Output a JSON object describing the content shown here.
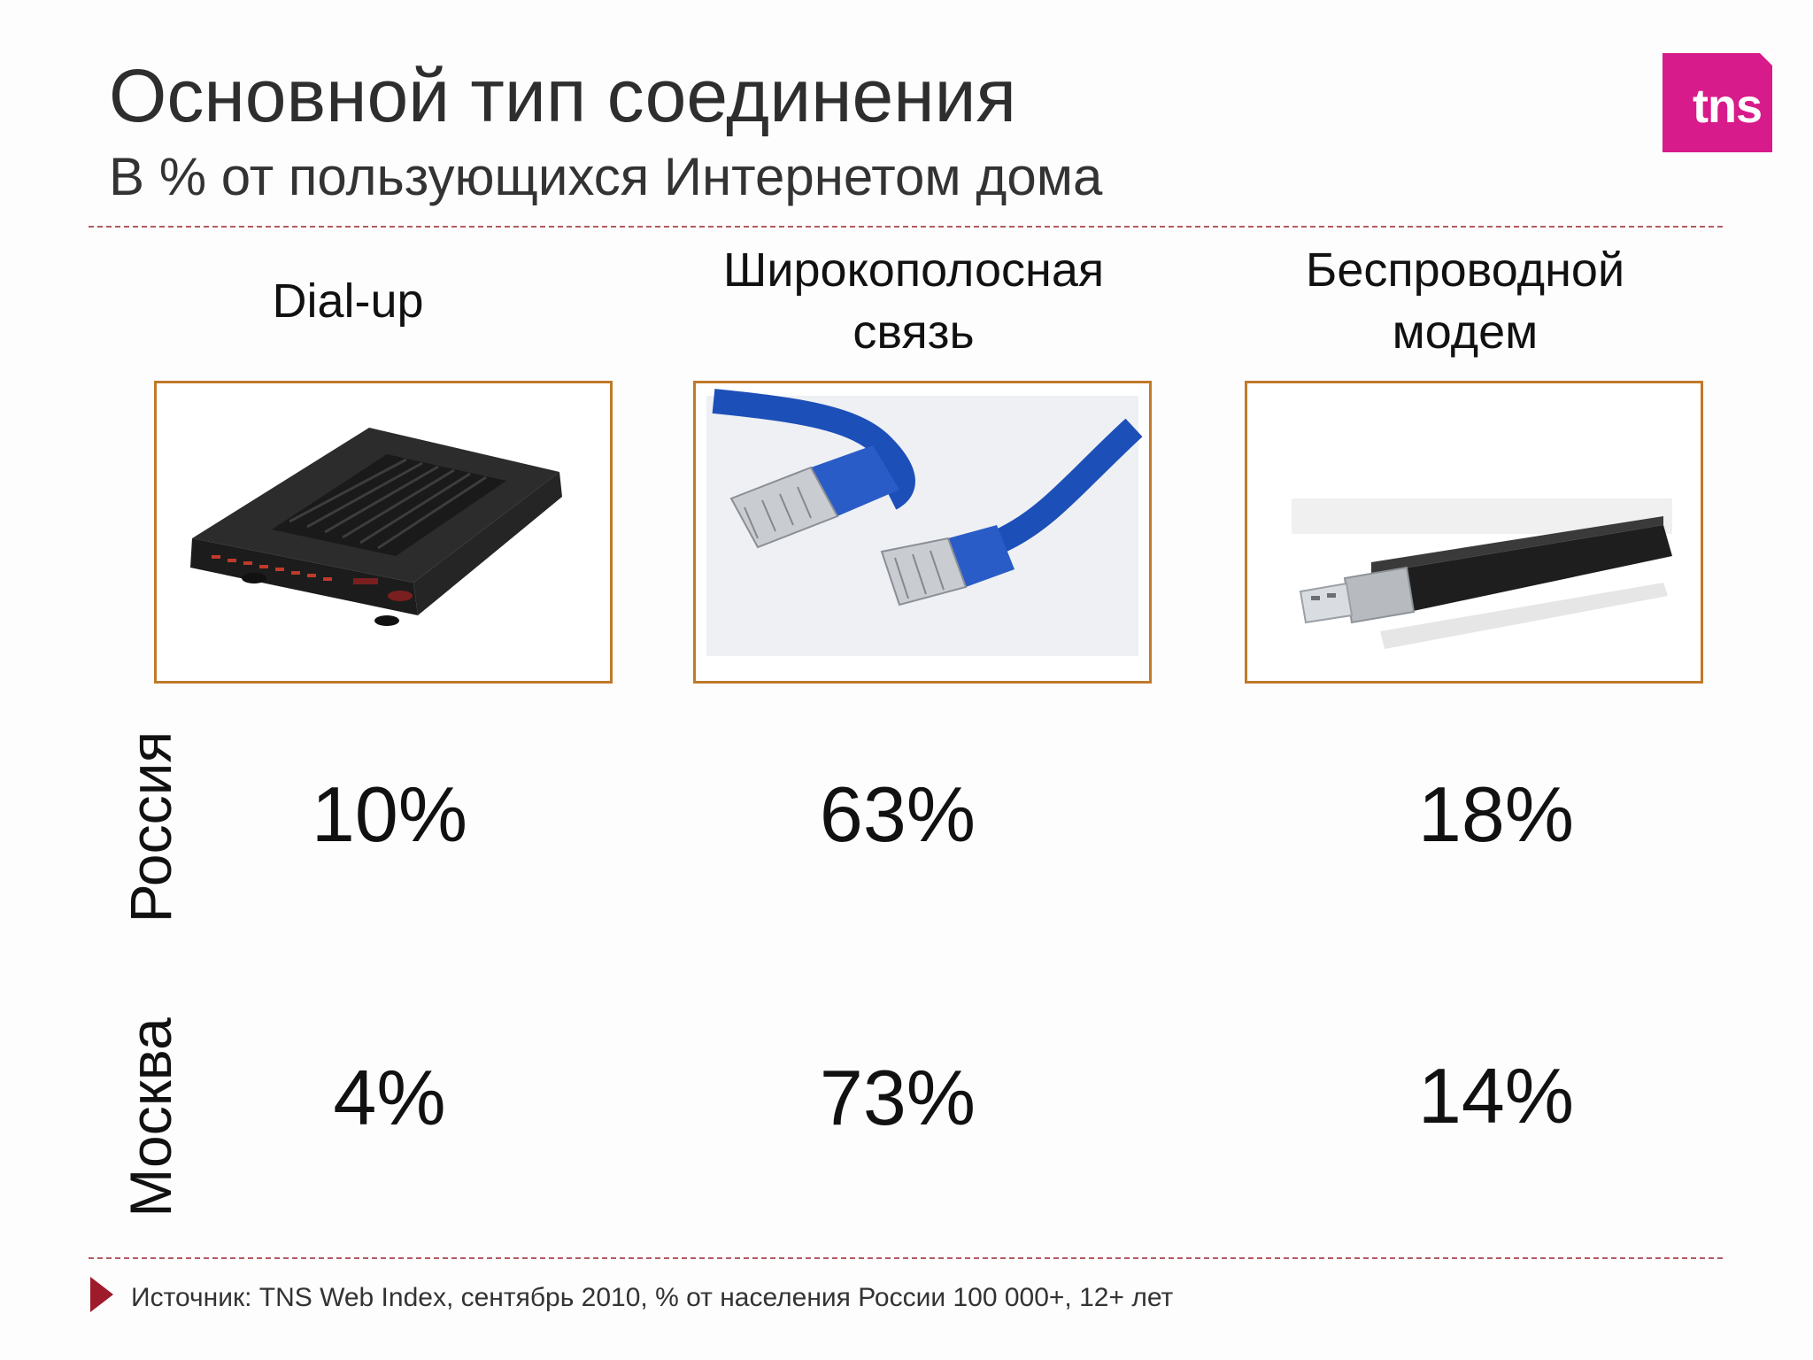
{
  "slide": {
    "title": "Основной тип соединения",
    "subtitle": "В % от пользующихся Интернетом дома",
    "logo_text": "tns",
    "accent_color": "#d81b8a",
    "frame_color": "#c07a2a",
    "divider_color": "#b35a63"
  },
  "columns": [
    {
      "line1": "Dial-up",
      "line2": "",
      "image": "dial-up-modem"
    },
    {
      "line1": "Широкополосная",
      "line2": "связь",
      "image": "ethernet-cables"
    },
    {
      "line1": "Беспроводной",
      "line2": "модем",
      "image": "usb-modem"
    }
  ],
  "rows": [
    {
      "label": "Россия",
      "values": [
        "10%",
        "63%",
        "18%"
      ]
    },
    {
      "label": "Москва",
      "values": [
        "4%",
        "73%",
        "14%"
      ]
    }
  ],
  "footer": {
    "source": "Источник: TNS Web Index, сентябрь 2010, % от населения России 100 000+, 12+ лет"
  }
}
